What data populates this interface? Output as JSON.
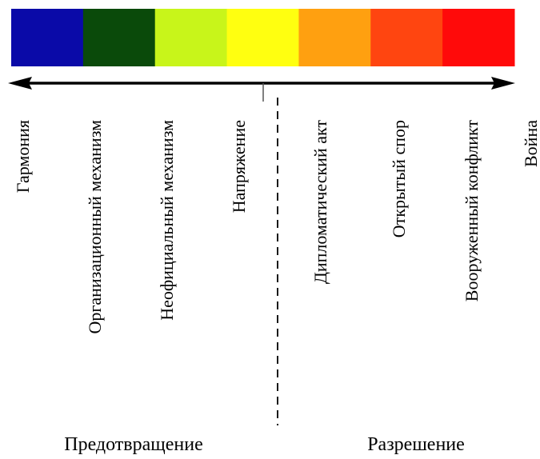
{
  "color_bar": {
    "segments": [
      {
        "color": "#0a0aa8"
      },
      {
        "color": "#0a4a0a"
      },
      {
        "color": "#c8f51a"
      },
      {
        "color": "#ffff10"
      },
      {
        "color": "#ffa010"
      },
      {
        "color": "#ff4510"
      },
      {
        "color": "#ff0a0a"
      }
    ]
  },
  "scale": {
    "stages": [
      {
        "id": "harmony",
        "label": "Гармония"
      },
      {
        "id": "organizational-mechanism",
        "label": "Организационный механизм"
      },
      {
        "id": "informal-mechanism",
        "label": "Неофициальный механизм"
      },
      {
        "id": "tension",
        "label": "Напряжение"
      },
      {
        "id": "diplomatic-act",
        "label": "Дипломатический акт"
      },
      {
        "id": "open-dispute",
        "label": "Открытый спор"
      },
      {
        "id": "armed-conflict",
        "label": "Вооруженный конфликт"
      },
      {
        "id": "war",
        "label": "Война"
      }
    ]
  },
  "groups": {
    "prevention": "Предотвращение",
    "resolution": "Разрешение"
  }
}
